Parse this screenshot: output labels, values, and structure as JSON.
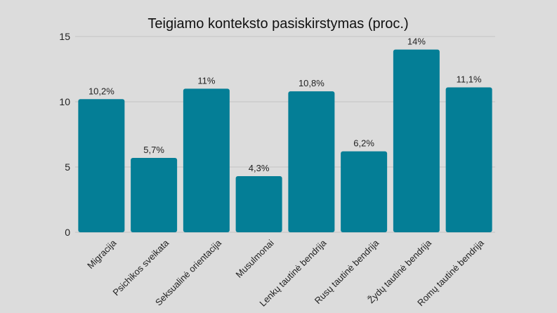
{
  "chart_data": {
    "type": "bar",
    "title": "Teigiamo konteksto pasiskirstymas (proc.)",
    "xlabel": "",
    "ylabel": "",
    "ylim": [
      0,
      15
    ],
    "yticks": [
      0,
      5,
      10,
      15
    ],
    "grid": true,
    "legend": "none",
    "bar_color": "#047e96",
    "categories": [
      "Migracija",
      "Psichikos sveikata",
      "Seksualinė orientacija",
      "Musulmonai",
      "Lenkų tautinė bendrija",
      "Rusų tautinė bendrija",
      "Žydų tautinė bendrija",
      "Romų tautinė bendrija"
    ],
    "values": [
      10.2,
      5.7,
      11,
      4.3,
      10.8,
      6.2,
      14,
      11.1
    ],
    "data_labels": [
      "10,2%",
      "5,7%",
      "11%",
      "4,3%",
      "10,8%",
      "6,2%",
      "14%",
      "11,1%"
    ]
  }
}
